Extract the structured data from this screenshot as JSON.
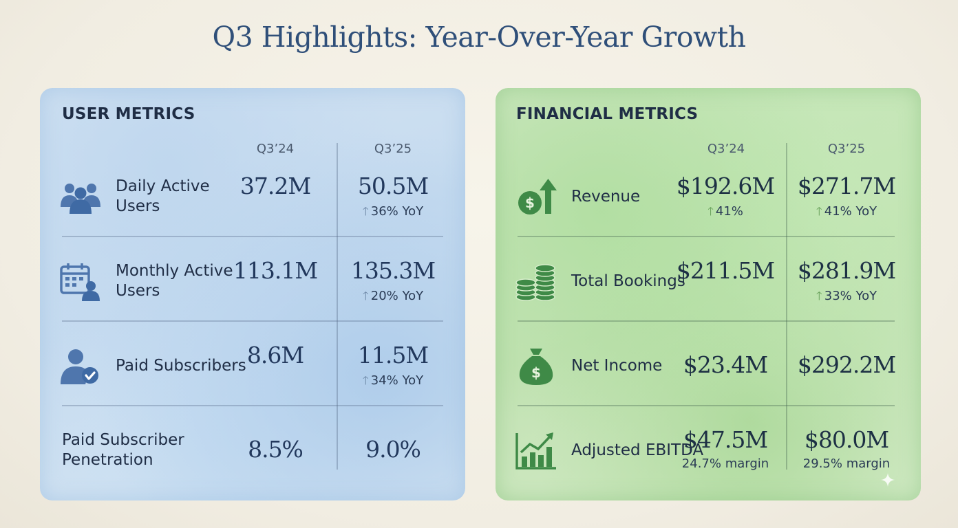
{
  "title": "Q3 Highlights: Year-Over-Year Growth",
  "chart_data": {
    "type": "table",
    "title": "Q3 Highlights: Year-Over-Year Growth",
    "tables": [
      {
        "heading": "USER METRICS",
        "columns": [
          "Q3’24",
          "Q3’25"
        ],
        "rows": [
          {
            "metric": "Daily Active Users",
            "q3_24": "37.2M",
            "q3_25": "50.5M",
            "q3_25_note": "36% YoY"
          },
          {
            "metric": "Monthly Active Users",
            "q3_24": "113.1M",
            "q3_25": "135.3M",
            "q3_25_note": "20% YoY"
          },
          {
            "metric": "Paid Subscribers",
            "q3_24": "8.6M",
            "q3_25": "11.5M",
            "q3_25_note": "34% YoY"
          },
          {
            "metric": "Paid Subscriber Penetration",
            "q3_24": "8.5%",
            "q3_25": "9.0%"
          }
        ]
      },
      {
        "heading": "FINANCIAL METRICS",
        "columns": [
          "Q3’24",
          "Q3’25"
        ],
        "rows": [
          {
            "metric": "Revenue",
            "q3_24": "$192.6M",
            "q3_24_note": "41%",
            "q3_25": "$271.7M",
            "q3_25_note": "41% YoY"
          },
          {
            "metric": "Total Bookings",
            "q3_24": "$211.5M",
            "q3_25": "$281.9M",
            "q3_25_note": "33% YoY"
          },
          {
            "metric": "Net Income",
            "q3_24": "$23.4M",
            "q3_25": "$292.2M"
          },
          {
            "metric": "Adjusted EBITDA",
            "q3_24": "$47.5M",
            "q3_24_note": "24.7% margin",
            "q3_25": "$80.0M",
            "q3_25_note": "29.5% margin"
          }
        ]
      }
    ]
  },
  "icons": {
    "dau": "users-group-icon",
    "mau": "calendar-user-icon",
    "paid": "user-check-icon",
    "revenue": "dollar-coin-arrow-icon",
    "bookings": "coin-stacks-icon",
    "net_income": "money-bag-icon",
    "ebitda": "growth-chart-icon"
  },
  "colors": {
    "title": "#2f4f79",
    "user_icon": "#4f76ad",
    "fin_icon": "#3f8a47",
    "user_arrow": "#6f89a8",
    "fin_arrow": "#6aa35c"
  }
}
